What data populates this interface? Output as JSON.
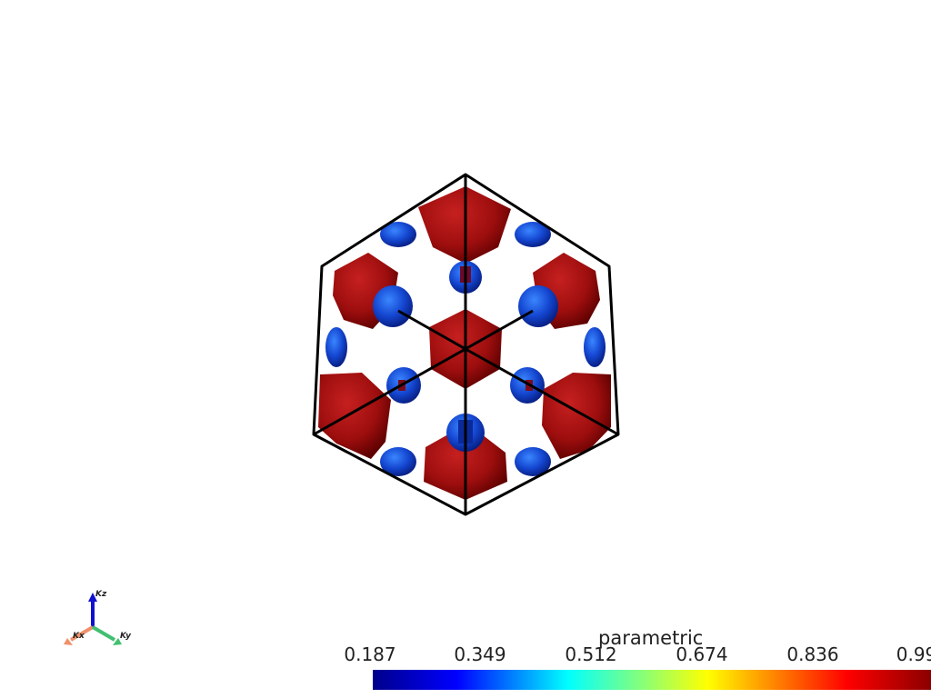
{
  "scene": {
    "axes": {
      "x_label": "Kx",
      "y_label": "Ky",
      "z_label": "Kz"
    }
  },
  "colorbar": {
    "title": "parametric",
    "ticks": [
      "0.187",
      "0.349",
      "0.512",
      "0.674",
      "0.836",
      "0.99"
    ],
    "colormap": [
      "#00008b",
      "#0000ff",
      "#00ffff",
      "#ffff00",
      "#ff0000",
      "#8b0000"
    ]
  },
  "colors": {
    "red_surface": "#b01212",
    "blue_surface": "#1a55d6",
    "box_edges": "#000000"
  }
}
